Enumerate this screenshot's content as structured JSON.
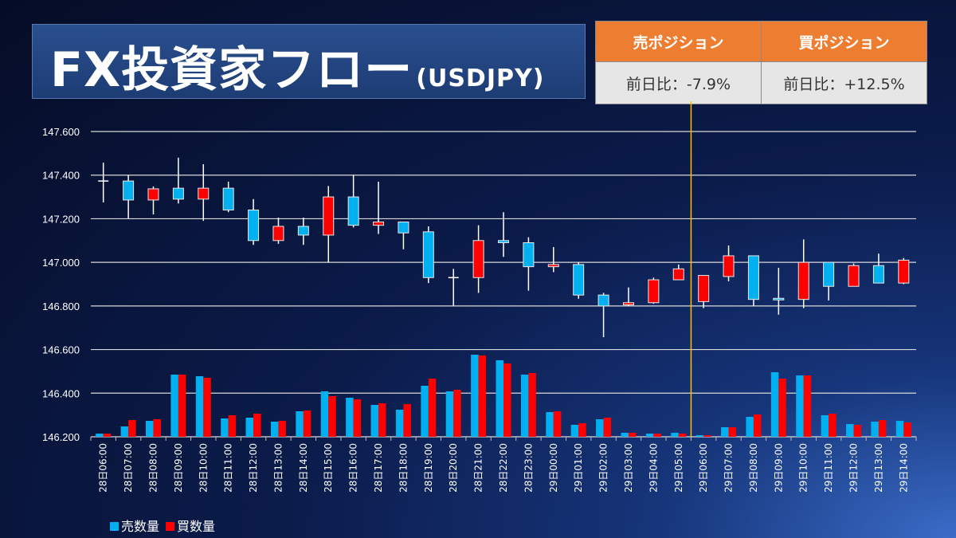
{
  "header": {
    "title": "FX投資家フロー",
    "subtitle": "(USDJPY)"
  },
  "positions": {
    "sell": {
      "label": "売ポジション",
      "change": "前日比：-7.9%"
    },
    "buy": {
      "label": "買ポジション",
      "change": "前日比：+12.5%"
    }
  },
  "colors": {
    "sell": "#00B0F0",
    "buy": "#FF0000",
    "header_bg": "#ED7D31",
    "divider": "#FFC000",
    "grid": "#D9D9D9"
  },
  "chart_data": {
    "type": "candlestick+bar",
    "ylim": [
      146.2,
      147.6
    ],
    "yticks": [
      "146.200",
      "146.400",
      "146.600",
      "146.800",
      "147.000",
      "147.200",
      "147.400",
      "147.600"
    ],
    "grid": true,
    "legend_position": "bottom-left",
    "legend": [
      {
        "name": "売数量",
        "color": "#00B0F0"
      },
      {
        "name": "買数量",
        "color": "#FF0000"
      }
    ],
    "divider_between": [
      "29日05:00",
      "29日06:00"
    ],
    "categories": [
      "28日06:00",
      "28日07:00",
      "28日08:00",
      "28日09:00",
      "28日10:00",
      "28日11:00",
      "28日12:00",
      "28日13:00",
      "28日14:00",
      "28日15:00",
      "28日16:00",
      "28日17:00",
      "28日18:00",
      "28日19:00",
      "28日20:00",
      "28日21:00",
      "28日22:00",
      "28日23:00",
      "29日00:00",
      "29日01:00",
      "29日02:00",
      "29日03:00",
      "29日04:00",
      "29日05:00",
      "29日06:00",
      "29日07:00",
      "29日08:00",
      "29日09:00",
      "29日10:00",
      "29日11:00",
      "29日12:00",
      "29日13:00",
      "29日14:00"
    ],
    "ohlc": [
      [
        147.373,
        147.457,
        147.275,
        147.373
      ],
      [
        147.373,
        147.399,
        147.202,
        147.286
      ],
      [
        147.286,
        147.348,
        147.22,
        147.337
      ],
      [
        147.34,
        147.48,
        147.27,
        147.29
      ],
      [
        147.29,
        147.45,
        147.19,
        147.34
      ],
      [
        147.34,
        147.37,
        147.23,
        147.24
      ],
      [
        147.24,
        147.29,
        147.08,
        147.1
      ],
      [
        147.1,
        147.205,
        147.085,
        147.165
      ],
      [
        147.165,
        147.205,
        147.08,
        147.125
      ],
      [
        147.125,
        147.35,
        147.0,
        147.3
      ],
      [
        147.3,
        147.4,
        147.16,
        147.17
      ],
      [
        147.17,
        147.37,
        147.13,
        147.185
      ],
      [
        147.185,
        147.185,
        147.06,
        147.135
      ],
      [
        147.14,
        147.165,
        146.905,
        146.93
      ],
      [
        146.93,
        146.97,
        146.8,
        146.93
      ],
      [
        146.93,
        147.17,
        146.86,
        147.1
      ],
      [
        147.1,
        147.23,
        147.025,
        147.09
      ],
      [
        147.09,
        147.115,
        146.87,
        146.98
      ],
      [
        146.98,
        147.07,
        146.955,
        146.99
      ],
      [
        146.99,
        147.0,
        146.833,
        146.85
      ],
      [
        146.85,
        146.86,
        146.657,
        146.8
      ],
      [
        146.805,
        146.885,
        146.8,
        146.815
      ],
      [
        146.815,
        146.93,
        146.81,
        146.92
      ],
      [
        146.92,
        146.99,
        146.92,
        146.97
      ],
      [
        146.82,
        146.94,
        146.79,
        146.94
      ],
      [
        146.935,
        147.077,
        146.913,
        147.03
      ],
      [
        147.03,
        147.03,
        146.8,
        146.83
      ],
      [
        146.835,
        146.975,
        146.76,
        146.83
      ],
      [
        146.83,
        147.105,
        146.79,
        147.0
      ],
      [
        147.0,
        147.0,
        146.825,
        146.89
      ],
      [
        146.89,
        146.995,
        146.89,
        146.985
      ],
      [
        146.985,
        147.04,
        146.905,
        146.905
      ],
      [
        146.905,
        147.02,
        146.9,
        147.01
      ]
    ],
    "series": [
      {
        "name": "売数量",
        "values": [
          4,
          13,
          20,
          78,
          76,
          23,
          24,
          19,
          32,
          57,
          49,
          40,
          34,
          64,
          57,
          103,
          96,
          78,
          31,
          15,
          22,
          5,
          4,
          5,
          2,
          12,
          25,
          81,
          77,
          27,
          16,
          19,
          20
        ]
      },
      {
        "name": "買数量",
        "values": [
          4,
          21,
          22,
          78,
          74,
          27,
          29,
          20,
          33,
          51,
          47,
          42,
          41,
          73,
          59,
          102,
          92,
          80,
          32,
          17,
          24,
          5,
          4,
          4,
          2,
          12,
          28,
          73,
          77,
          29,
          15,
          21,
          18
        ]
      }
    ]
  }
}
